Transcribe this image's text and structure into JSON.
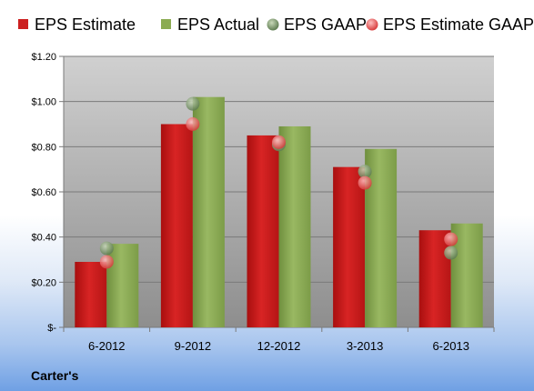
{
  "chart_data": {
    "type": "bar",
    "categories": [
      "6-2012",
      "9-2012",
      "12-2012",
      "3-2013",
      "6-2013"
    ],
    "series": [
      {
        "name": "EPS Estimate",
        "kind": "bar",
        "color": "#cc1f1f",
        "values": [
          0.29,
          0.9,
          0.85,
          0.71,
          0.43
        ]
      },
      {
        "name": "EPS Actual",
        "kind": "bar",
        "color": "#8bab52",
        "values": [
          0.37,
          1.02,
          0.89,
          0.79,
          0.46
        ]
      },
      {
        "name": "EPS GAAP",
        "kind": "marker",
        "color": "#7f9e6a",
        "values": [
          0.35,
          0.99,
          0.81,
          0.69,
          0.33
        ]
      },
      {
        "name": "EPS Estimate GAAP",
        "kind": "marker",
        "color": "#e8585a",
        "values": [
          0.29,
          0.9,
          0.82,
          0.64,
          0.39
        ]
      }
    ],
    "ylim": [
      0,
      1.2
    ],
    "yticks": [
      {
        "value": 0,
        "label": "$-"
      },
      {
        "value": 0.2,
        "label": "$0.20"
      },
      {
        "value": 0.4,
        "label": "$0.40"
      },
      {
        "value": 0.6,
        "label": "$0.60"
      },
      {
        "value": 0.8,
        "label": "$0.80"
      },
      {
        "value": 1.0,
        "label": "$1.00"
      },
      {
        "value": 1.2,
        "label": "$1.20"
      }
    ],
    "grid": true,
    "legend_position": "top",
    "company": "Carter's",
    "plot_background": "#b0b0b0"
  }
}
